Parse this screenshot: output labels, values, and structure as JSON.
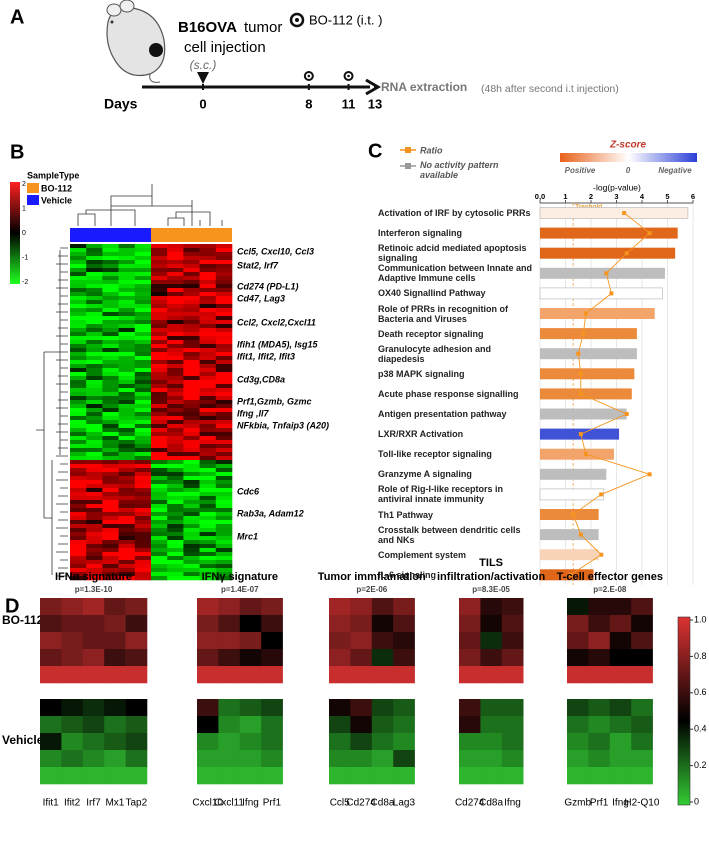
{
  "panel_a": {
    "label": "A",
    "strain": "B16OVA",
    "injection_1": "tumor",
    "injection_2": "cell injection",
    "route": "(s.c.)",
    "treatment": "BO-112 (i.t. )",
    "days_label": "Days",
    "days": [
      0,
      8,
      11,
      13
    ],
    "endpoint": "RNA extraction",
    "endpoint_note": "(48h after second i.t injection)"
  },
  "panel_b": {
    "label": "B",
    "legend_title": "SampleType",
    "groups": [
      {
        "name": "BO-112",
        "color": "#f7941d"
      },
      {
        "name": "Vehicle",
        "color": "#1a1aff"
      }
    ],
    "colorbar_ticks": [
      2,
      1,
      0,
      -1,
      -2
    ],
    "gene_labels": [
      "Ccl5, Cxcl10, Ccl3",
      "Stat2, Irf7",
      "Cd274 (PD-L1)",
      "Cd47, Lag3",
      "Ccl2, Cxcl2,Cxcl11",
      "Ifih1 (MDA5), Isg15",
      "Ifit1, Ifit2, Ifit3",
      "Cd3g,CD8a",
      "Prf1,Gzmb, Gzmc",
      "Ifng ,Il7",
      "NFkbia, Tnfaip3 (A20)",
      "Cdc6",
      "Rab3a, Adam12",
      "Mrc1"
    ]
  },
  "chart_data": {
    "type": "bar",
    "panel": "C",
    "xlabel": "-log(p-value)",
    "categories": [
      "Activation of IRF by cytosolic PRRs",
      "Interferon signaling",
      "Retinoic adcid mediated apoptosis signaling",
      "Communication between Innate and Adaptive Immune cells",
      "OX40 Signallind Pathway",
      "Role of PRRs in recognition of Bacteria and Viruses",
      "Death receptor signaling",
      "Granulocyte adhesion and diapedesis",
      "p38 MAPK signaling",
      "Acute phase response signalling",
      "Antigen presentation pathway",
      "LXR/RXR Activation",
      "Toll-like receptor signaling",
      "Granzyme A signaling",
      "Role of Rig-I-like receptors in antiviral innate immunity",
      "Th1 Pathway",
      "Crosstalk between dendritic cells and NKs",
      "Complement system",
      "IL-6 signaling"
    ],
    "values": [
      5.8,
      5.4,
      5.3,
      4.9,
      4.8,
      4.5,
      3.8,
      3.8,
      3.7,
      3.6,
      3.4,
      3.1,
      2.9,
      2.6,
      2.5,
      2.3,
      2.3,
      2.3,
      2.1
    ],
    "colors": [
      "#fdeee3",
      "#e0661a",
      "#e0661a",
      "#bdbdbd",
      "#ffffff",
      "#f2a46b",
      "#ec8a3c",
      "#bdbdbd",
      "#ec8a3c",
      "#ec8a3c",
      "#bdbdbd",
      "#4052d6",
      "#f2a46b",
      "#bdbdbd",
      "#ffffff",
      "#ec8a3c",
      "#bdbdbd",
      "#f8d3b7",
      "#e0661a"
    ],
    "ratio": {
      "name": "Ratio",
      "color": "#f7941d",
      "values": [
        3.3,
        4.3,
        3.4,
        2.6,
        2.8,
        1.8,
        1.7,
        1.5,
        1.6,
        1.6,
        3.4,
        1.6,
        1.8,
        4.3,
        2.4,
        1.3,
        1.6,
        2.4,
        1.2
      ]
    },
    "gray_legend": {
      "name": "No activity pattern available",
      "color": "#999999"
    },
    "zscore": {
      "title": "Z-score",
      "labels": [
        "Positive",
        "0",
        "Negative"
      ],
      "colors": [
        "#e8611a",
        "#ffffff",
        "#2b3fd6"
      ]
    },
    "threshold": 1.3,
    "threshold_label": "Treshold",
    "xlim": [
      0,
      6
    ],
    "xticks": [
      {
        "value": 0,
        "label": "0,0"
      },
      1,
      2,
      3,
      4,
      5,
      6
    ],
    "grid": true
  },
  "panel_d": {
    "label": "D",
    "row_labels": [
      "BO-112",
      "Vehicle"
    ],
    "colorbar_ticks": [
      {
        "value": 1,
        "label": "1.0"
      },
      0.8,
      0.6,
      0.4,
      0.2,
      0
    ],
    "heatmaps": [
      {
        "title": [
          "IFNα signature"
        ],
        "p": "p=1.3E-10",
        "genes": [
          "Ifit1",
          "Ifit2",
          "Irf7",
          "Mx1",
          "Tap2"
        ],
        "bo112": [
          [
            0.75,
            0.8,
            0.85,
            0.7,
            0.75
          ],
          [
            0.65,
            0.7,
            0.7,
            0.75,
            0.6
          ],
          [
            0.8,
            0.75,
            0.7,
            0.7,
            0.8
          ],
          [
            0.7,
            0.75,
            0.8,
            0.6,
            0.65
          ],
          [
            0.95,
            0.95,
            0.95,
            0.95,
            0.95
          ]
        ],
        "vehicle": [
          [
            0.45,
            0.4,
            0.35,
            0.4,
            0.45
          ],
          [
            0.2,
            0.25,
            0.3,
            0.2,
            0.25
          ],
          [
            0.4,
            0.15,
            0.2,
            0.25,
            0.3
          ],
          [
            0.15,
            0.2,
            0.15,
            0.1,
            0.2
          ],
          [
            0.05,
            0.05,
            0.05,
            0.05,
            0.05
          ]
        ]
      },
      {
        "title": [
          "IFNγ signature"
        ],
        "p": "p=1.4E-07",
        "genes": [
          "Cxcl10",
          "Cxcl11",
          "Ifng",
          "Prf1"
        ],
        "bo112": [
          [
            0.85,
            0.8,
            0.7,
            0.75
          ],
          [
            0.75,
            0.65,
            0.45,
            0.6
          ],
          [
            0.8,
            0.8,
            0.75,
            0.45
          ],
          [
            0.7,
            0.6,
            0.5,
            0.55
          ],
          [
            0.95,
            0.95,
            0.95,
            0.95
          ]
        ],
        "vehicle": [
          [
            0.6,
            0.2,
            0.25,
            0.3
          ],
          [
            0.45,
            0.15,
            0.1,
            0.2
          ],
          [
            0.15,
            0.1,
            0.15,
            0.2
          ],
          [
            0.1,
            0.1,
            0.1,
            0.15
          ],
          [
            0.05,
            0.05,
            0.05,
            0.05
          ]
        ]
      },
      {
        "title": [
          "Tumor immflamation"
        ],
        "p": "p=2E-06",
        "genes": [
          "Ccl5",
          "Cd274",
          "Cd8a",
          "Lag3"
        ],
        "bo112": [
          [
            0.85,
            0.8,
            0.65,
            0.75
          ],
          [
            0.8,
            0.75,
            0.5,
            0.65
          ],
          [
            0.75,
            0.8,
            0.6,
            0.55
          ],
          [
            0.8,
            0.7,
            0.35,
            0.6
          ],
          [
            0.95,
            0.95,
            0.95,
            0.95
          ]
        ],
        "vehicle": [
          [
            0.5,
            0.6,
            0.3,
            0.25
          ],
          [
            0.3,
            0.5,
            0.25,
            0.2
          ],
          [
            0.2,
            0.3,
            0.2,
            0.15
          ],
          [
            0.15,
            0.15,
            0.1,
            0.3
          ],
          [
            0.05,
            0.05,
            0.05,
            0.05
          ]
        ]
      },
      {
        "title": [
          "TILS",
          "infiltration/activation"
        ],
        "p": "p=8.3E-05",
        "genes": [
          "Cd274",
          "Cd8a",
          "Ifng"
        ],
        "bo112": [
          [
            0.8,
            0.55,
            0.6
          ],
          [
            0.75,
            0.5,
            0.65
          ],
          [
            0.7,
            0.35,
            0.6
          ],
          [
            0.75,
            0.6,
            0.7
          ],
          [
            0.95,
            0.95,
            0.95
          ]
        ],
        "vehicle": [
          [
            0.6,
            0.25,
            0.25
          ],
          [
            0.55,
            0.2,
            0.2
          ],
          [
            0.15,
            0.15,
            0.2
          ],
          [
            0.1,
            0.1,
            0.15
          ],
          [
            0.05,
            0.05,
            0.05
          ]
        ]
      },
      {
        "title": [
          "T-cell effector genes"
        ],
        "p": "p=2.E-08",
        "genes": [
          "Gzmb",
          "Prf1",
          "Ifng",
          "H2-Q10"
        ],
        "bo112": [
          [
            0.4,
            0.55,
            0.55,
            0.65
          ],
          [
            0.75,
            0.6,
            0.7,
            0.5
          ],
          [
            0.7,
            0.8,
            0.5,
            0.65
          ],
          [
            0.5,
            0.55,
            0.45,
            0.45
          ],
          [
            0.95,
            0.95,
            0.95,
            0.95
          ]
        ],
        "vehicle": [
          [
            0.3,
            0.25,
            0.3,
            0.2
          ],
          [
            0.2,
            0.15,
            0.2,
            0.25
          ],
          [
            0.15,
            0.2,
            0.1,
            0.2
          ],
          [
            0.1,
            0.15,
            0.1,
            0.1
          ],
          [
            0.05,
            0.05,
            0.05,
            0.05
          ]
        ]
      }
    ]
  }
}
